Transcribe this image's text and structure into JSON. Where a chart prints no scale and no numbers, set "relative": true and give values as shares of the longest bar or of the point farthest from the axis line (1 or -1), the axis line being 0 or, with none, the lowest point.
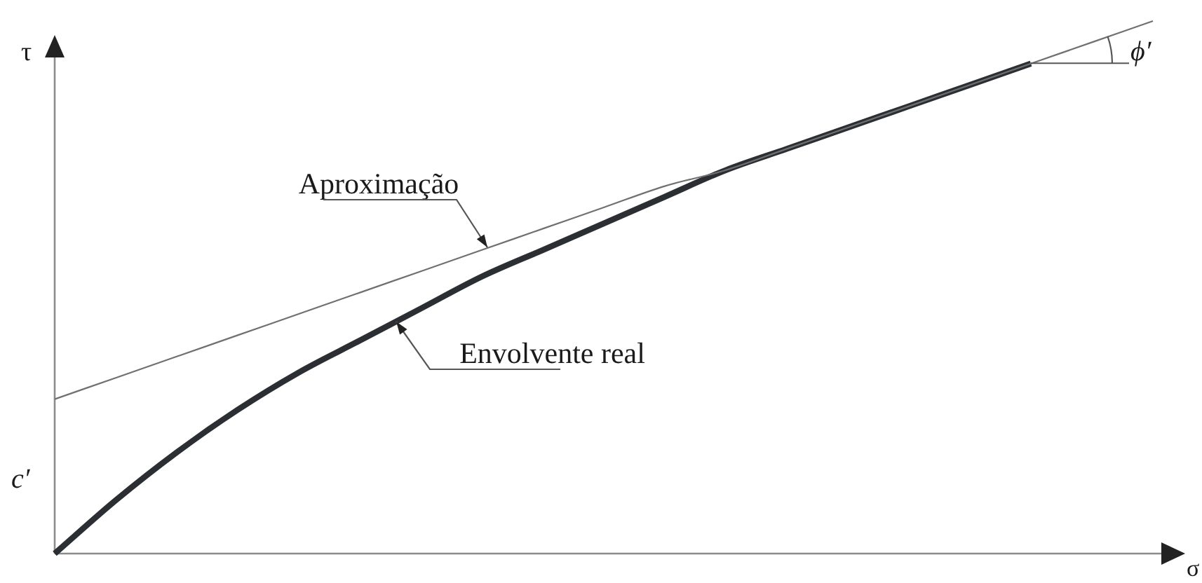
{
  "chart_data": {
    "type": "line",
    "relative": true,
    "xlabel": "σ",
    "ylabel": "τ",
    "annotations": [
      "c′",
      "ϕ′"
    ],
    "categories": [
      null,
      null,
      null,
      null,
      null,
      null,
      null,
      null,
      null,
      null,
      null,
      null,
      null,
      null,
      null,
      null,
      null,
      null,
      null
    ],
    "series": [
      {
        "name": "Aproximação",
        "color": "#707070",
        "values": [
          0.29,
          0.33,
          0.37,
          0.41,
          0.45,
          0.49,
          0.53,
          0.57,
          0.61,
          0.65,
          0.69,
          0.72,
          0.76,
          0.8,
          0.84,
          0.88,
          0.92,
          0.96,
          1
        ]
      },
      {
        "name": "Envolvente real",
        "color": "#2b2f33",
        "values": [
          0,
          0.1,
          0.19,
          0.27,
          0.34,
          0.4,
          0.46,
          0.52,
          0.57,
          0.62,
          0.67,
          0.72,
          0.76,
          0.8,
          0.84,
          0.88,
          0.92,
          null,
          null
        ]
      }
    ]
  }
}
